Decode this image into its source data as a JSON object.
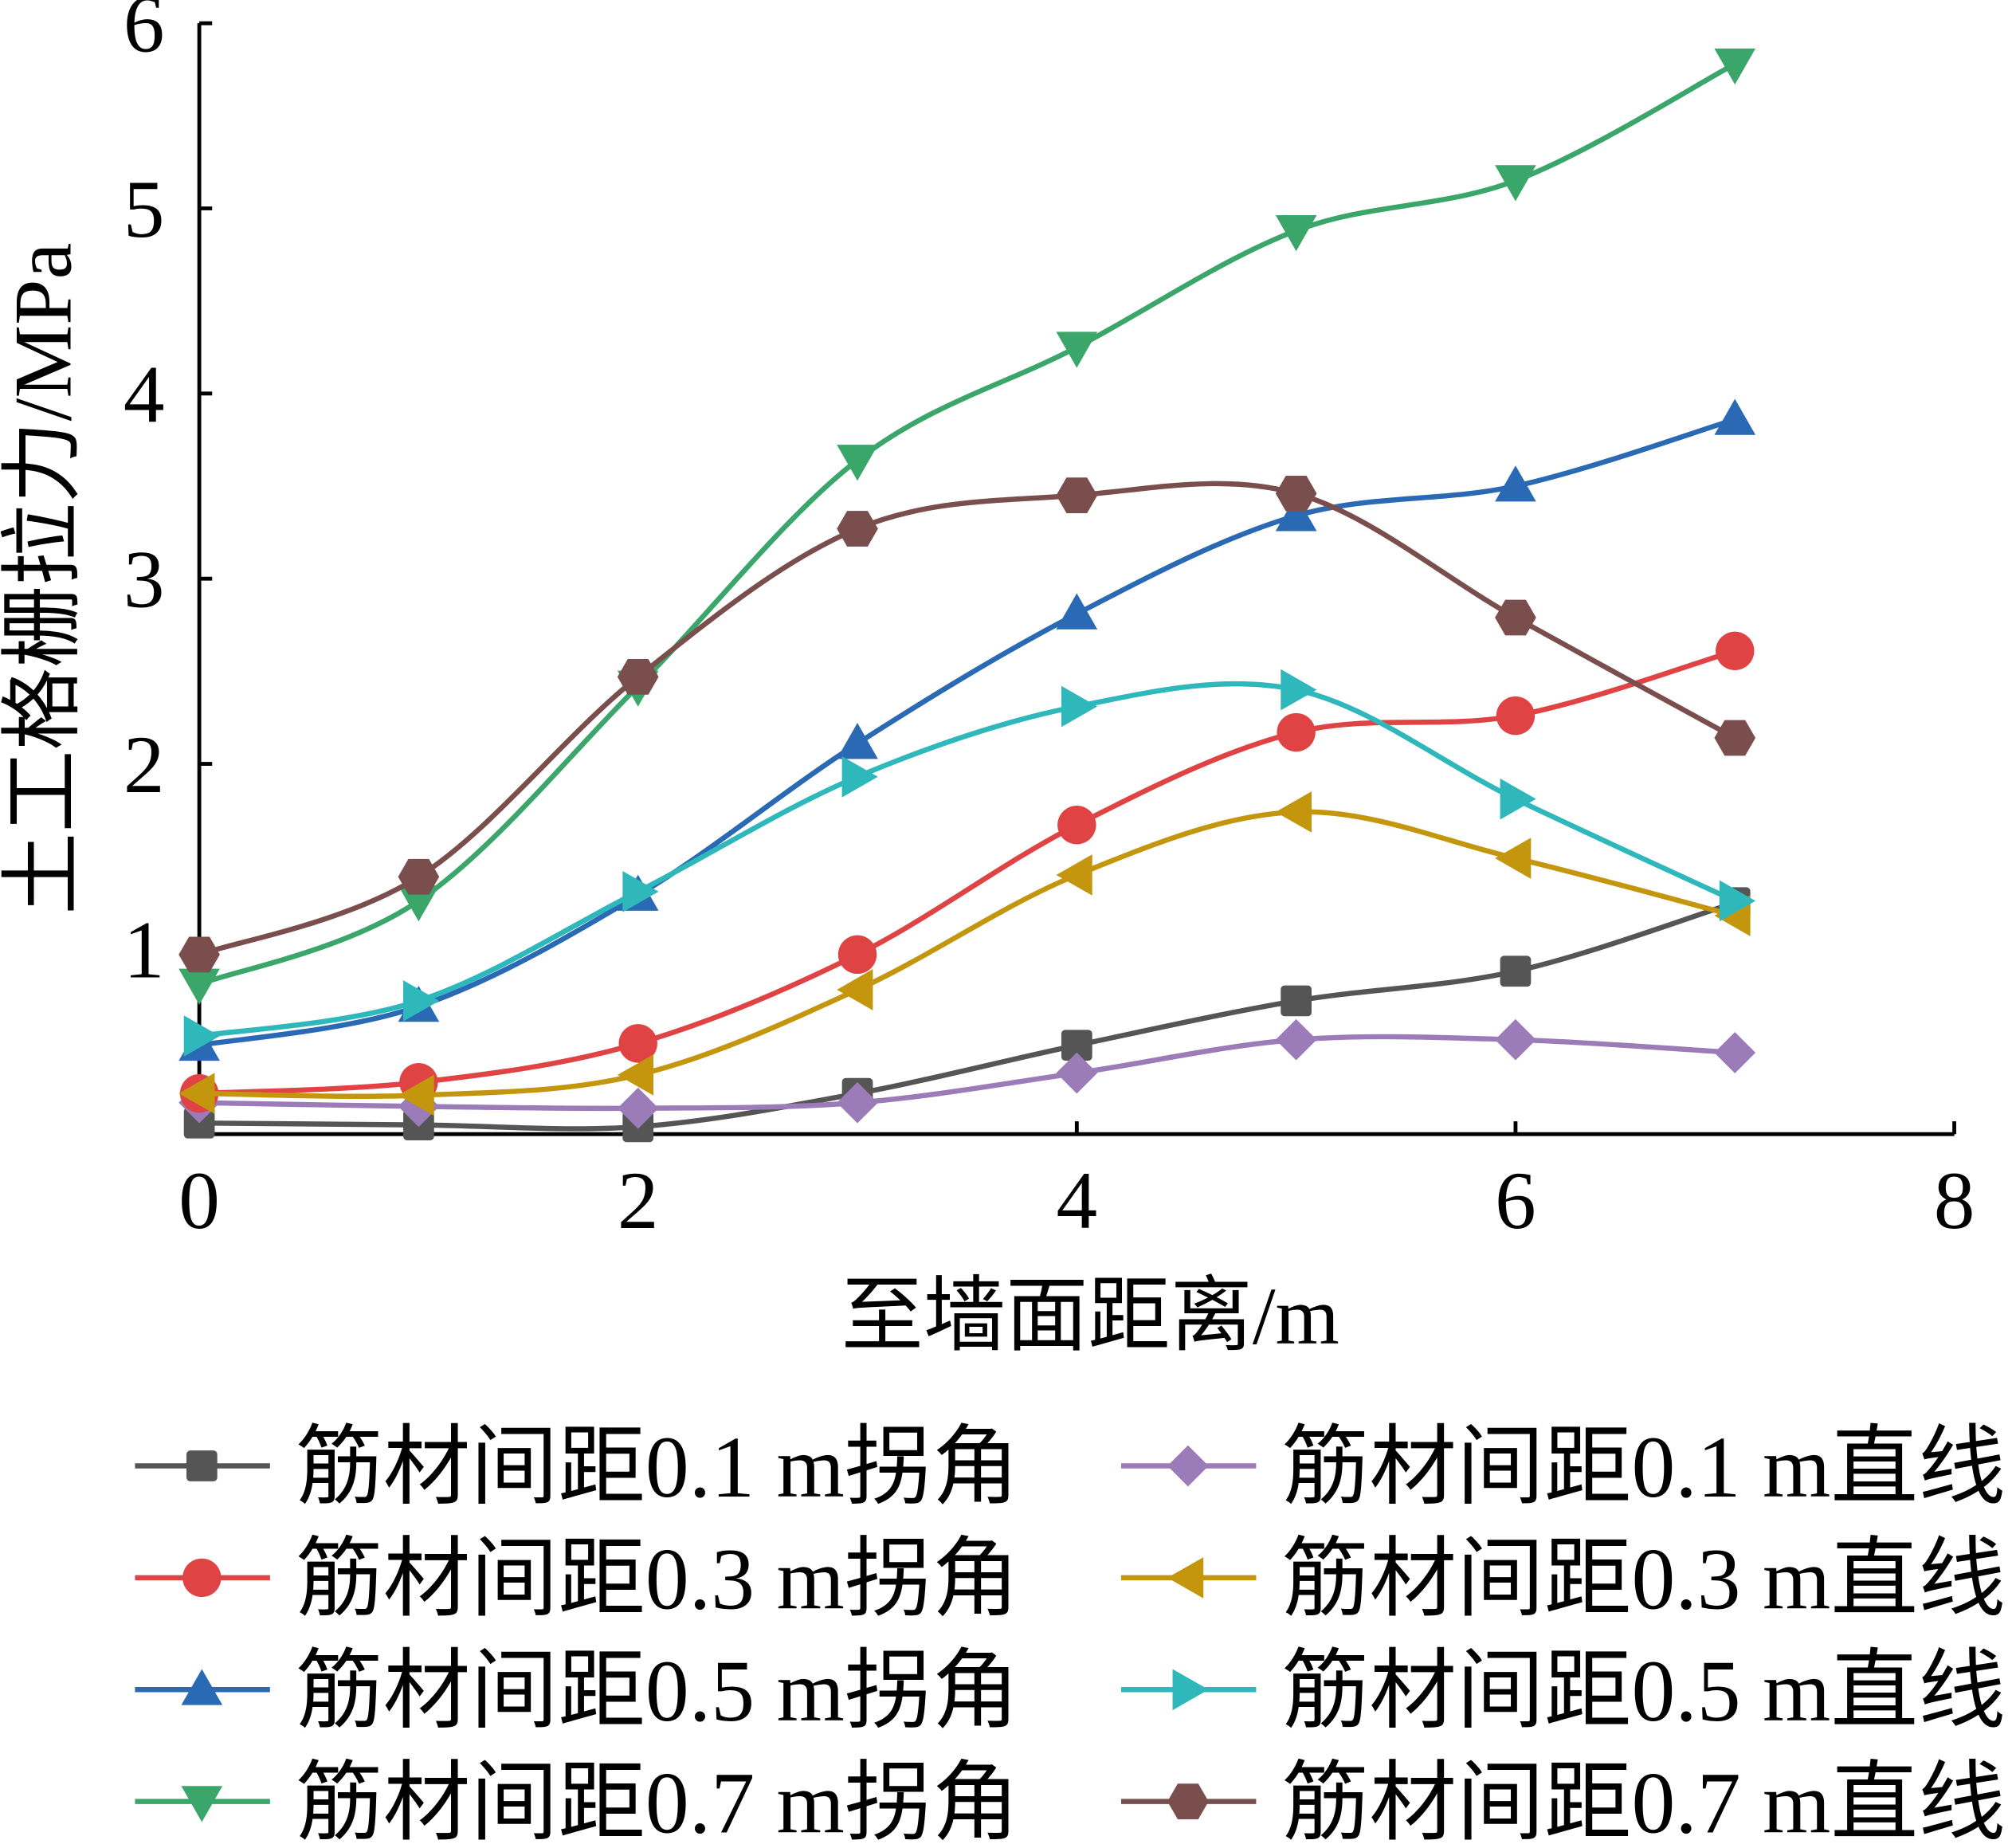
{
  "chart_data": {
    "type": "line",
    "title": "",
    "xlabel": "至墙面距离/m",
    "ylabel": "土工格栅拉力/MPa",
    "xlim": [
      0,
      8
    ],
    "ylim": [
      0,
      6
    ],
    "xticks": [
      "0",
      "2",
      "4",
      "6",
      "8"
    ],
    "yticks": [
      "1",
      "2",
      "3",
      "4",
      "5",
      "6"
    ],
    "grid": false,
    "legend_placement": "bottom",
    "x": [
      0,
      1,
      2,
      3,
      4,
      5,
      6,
      7
    ],
    "series": [
      {
        "name": "筋材间距0.1 m拐角",
        "color": "#555555",
        "marker": "square",
        "values": [
          0.06,
          0.05,
          0.04,
          0.22,
          0.48,
          0.72,
          0.88,
          1.25
        ]
      },
      {
        "name": "筋材间距0.1 m直线",
        "color": "#9b7bb8",
        "marker": "diamond",
        "values": [
          0.17,
          0.15,
          0.14,
          0.17,
          0.33,
          0.51,
          0.51,
          0.44
        ]
      },
      {
        "name": "筋材间距0.3 m拐角",
        "color": "#e04343",
        "marker": "circle",
        "values": [
          0.22,
          0.28,
          0.49,
          0.97,
          1.67,
          2.17,
          2.26,
          2.61
        ]
      },
      {
        "name": "筋材间距0.3 m直线",
        "color": "#c4960e",
        "marker": "triangle-left",
        "values": [
          0.22,
          0.21,
          0.32,
          0.78,
          1.4,
          1.74,
          1.49,
          1.18
        ]
      },
      {
        "name": "筋材间距0.5 m拐角",
        "color": "#2a69b3",
        "marker": "triangle-up",
        "values": [
          0.48,
          0.69,
          1.29,
          2.11,
          2.81,
          3.34,
          3.5,
          3.86
        ]
      },
      {
        "name": "筋材间距0.5 m直线",
        "color": "#2fb8bb",
        "marker": "triangle-right",
        "values": [
          0.53,
          0.72,
          1.31,
          1.93,
          2.31,
          2.4,
          1.81,
          1.26
        ]
      },
      {
        "name": "筋材间距0.7 m拐角",
        "color": "#3ba66a",
        "marker": "triangle-down",
        "values": [
          0.81,
          1.26,
          2.42,
          3.64,
          4.25,
          4.88,
          5.15,
          5.78
        ]
      },
      {
        "name": "筋材间距0.7 m直线",
        "color": "#7a4e4c",
        "marker": "hexagon",
        "values": [
          0.97,
          1.39,
          2.47,
          3.27,
          3.45,
          3.46,
          2.79,
          2.14
        ]
      }
    ]
  }
}
